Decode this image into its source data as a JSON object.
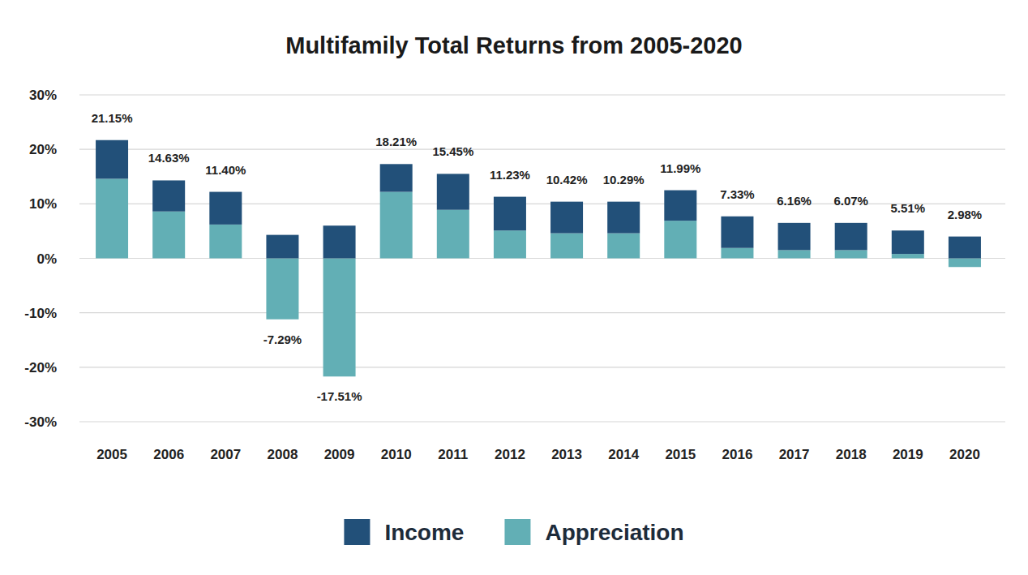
{
  "chart_data": {
    "type": "bar",
    "title": "Multifamily Total Returns from 2005-2020",
    "stacked": true,
    "grid": true,
    "legend": "bottom",
    "categories": [
      "2005",
      "2006",
      "2007",
      "2008",
      "2009",
      "2010",
      "2011",
      "2012",
      "2013",
      "2014",
      "2015",
      "2016",
      "2017",
      "2018",
      "2019",
      "2020"
    ],
    "series": [
      {
        "name": "Income",
        "color": "#225079",
        "values": [
          7.1,
          5.7,
          6.0,
          4.3,
          6.0,
          5.1,
          6.6,
          6.2,
          5.8,
          5.8,
          5.6,
          5.8,
          5.0,
          5.0,
          4.3,
          4.0
        ]
      },
      {
        "name": "Appreciation",
        "color": "#62afb5",
        "values": [
          14.6,
          8.6,
          6.2,
          -11.2,
          -21.7,
          12.2,
          8.9,
          5.1,
          4.6,
          4.6,
          6.9,
          1.9,
          1.5,
          1.5,
          0.8,
          -1.6
        ]
      }
    ],
    "totals": [
      21.15,
      14.63,
      11.4,
      -7.29,
      -17.51,
      18.21,
      15.45,
      11.23,
      10.42,
      10.29,
      11.99,
      7.33,
      6.16,
      6.07,
      5.51,
      2.98
    ],
    "total_labels": [
      "21.15%",
      "14.63%",
      "11.40%",
      "-7.29%",
      "-17.51%",
      "18.21%",
      "15.45%",
      "11.23%",
      "10.42%",
      "10.29%",
      "11.99%",
      "7.33%",
      "6.16%",
      "6.07%",
      "5.51%",
      "2.98%"
    ],
    "ylim": [
      -30,
      30
    ],
    "yticks": [
      {
        "value": -30,
        "label": "-30%"
      },
      {
        "value": -20,
        "label": "-20%"
      },
      {
        "value": -10,
        "label": "-10%"
      },
      {
        "value": 0,
        "label": "0%"
      },
      {
        "value": 10,
        "label": "10%"
      },
      {
        "value": 20,
        "label": "20%"
      },
      {
        "value": 30,
        "label": "30%"
      }
    ]
  }
}
